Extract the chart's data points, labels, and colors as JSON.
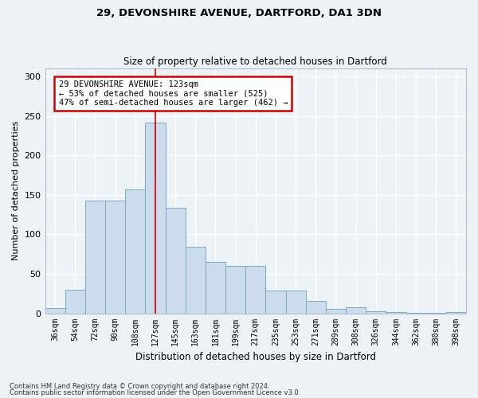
{
  "title1": "29, DEVONSHIRE AVENUE, DARTFORD, DA1 3DN",
  "title2": "Size of property relative to detached houses in Dartford",
  "xlabel": "Distribution of detached houses by size in Dartford",
  "ylabel": "Number of detached properties",
  "categories": [
    "36sqm",
    "54sqm",
    "72sqm",
    "90sqm",
    "108sqm",
    "127sqm",
    "145sqm",
    "163sqm",
    "181sqm",
    "199sqm",
    "217sqm",
    "235sqm",
    "253sqm",
    "271sqm",
    "289sqm",
    "308sqm",
    "326sqm",
    "344sqm",
    "362sqm",
    "380sqm",
    "398sqm"
  ],
  "values": [
    7,
    30,
    143,
    143,
    157,
    242,
    134,
    84,
    65,
    60,
    60,
    29,
    29,
    16,
    6,
    8,
    3,
    2,
    1,
    1,
    2
  ],
  "bar_color": "#ccdcec",
  "bar_edge_color": "#7aaabf",
  "vline_x_index": 5,
  "vline_color": "#cc0000",
  "annotation_text": "29 DEVONSHIRE AVENUE: 123sqm\n← 53% of detached houses are smaller (525)\n47% of semi-detached houses are larger (462) →",
  "annotation_box_color": "white",
  "annotation_box_edge": "#cc0000",
  "bg_color": "#edf2f7",
  "grid_color": "white",
  "footer1": "Contains HM Land Registry data © Crown copyright and database right 2024.",
  "footer2": "Contains public sector information licensed under the Open Government Licence v3.0.",
  "ylim": [
    0,
    310
  ],
  "yticks": [
    0,
    50,
    100,
    150,
    200,
    250,
    300
  ]
}
